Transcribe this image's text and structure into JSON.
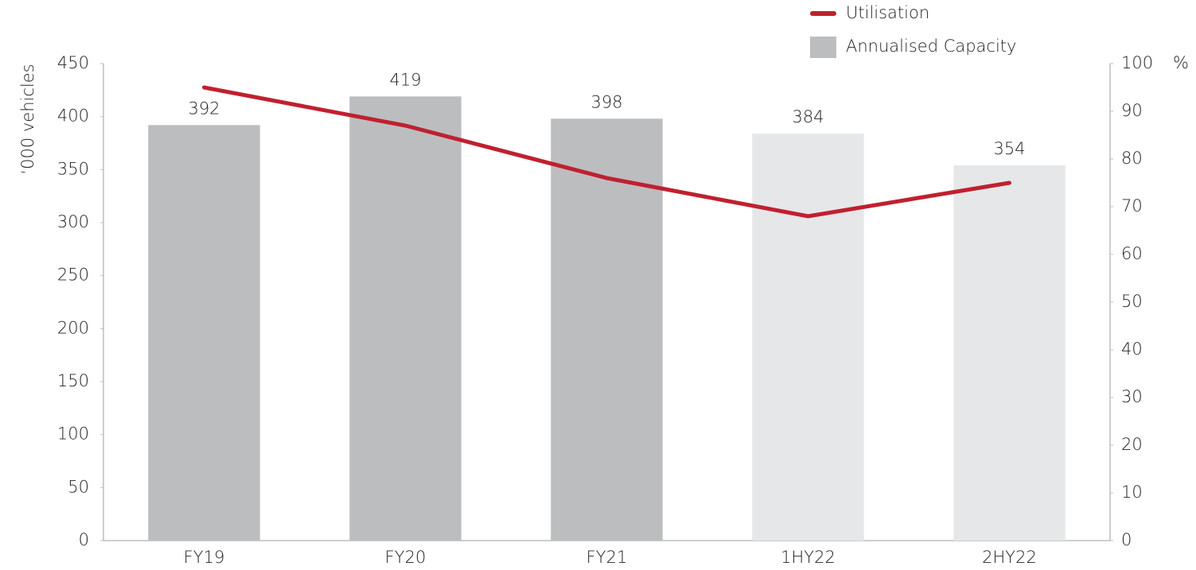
{
  "chart_data": {
    "type": "bar",
    "categories": [
      "FY19",
      "FY20",
      "FY21",
      "1HY22",
      "2HY22"
    ],
    "series": [
      {
        "name": "Annualised Capacity",
        "type": "bar",
        "color": "#bcbdbf",
        "bar_colors": [
          "#bcbdbf",
          "#bcbdbf",
          "#bcbdbf",
          "#e6e7e8",
          "#e6e7e8"
        ],
        "values": [
          392,
          419,
          398,
          384,
          354
        ]
      },
      {
        "name": "Utilisation",
        "type": "line",
        "axis": "y2",
        "color": "#c0202f",
        "values": [
          95,
          87,
          76,
          68,
          75
        ]
      }
    ],
    "ylabel": "‘000 vehicles",
    "y2label": "%",
    "ylim": [
      0,
      450
    ],
    "yticks": [
      0,
      50,
      100,
      150,
      200,
      250,
      300,
      350,
      400,
      450
    ],
    "y2lim": [
      0,
      100
    ],
    "y2ticks": [
      0,
      10,
      20,
      30,
      40,
      50,
      60,
      70,
      80,
      90,
      100
    ],
    "grid": false,
    "legend": "top-right"
  }
}
